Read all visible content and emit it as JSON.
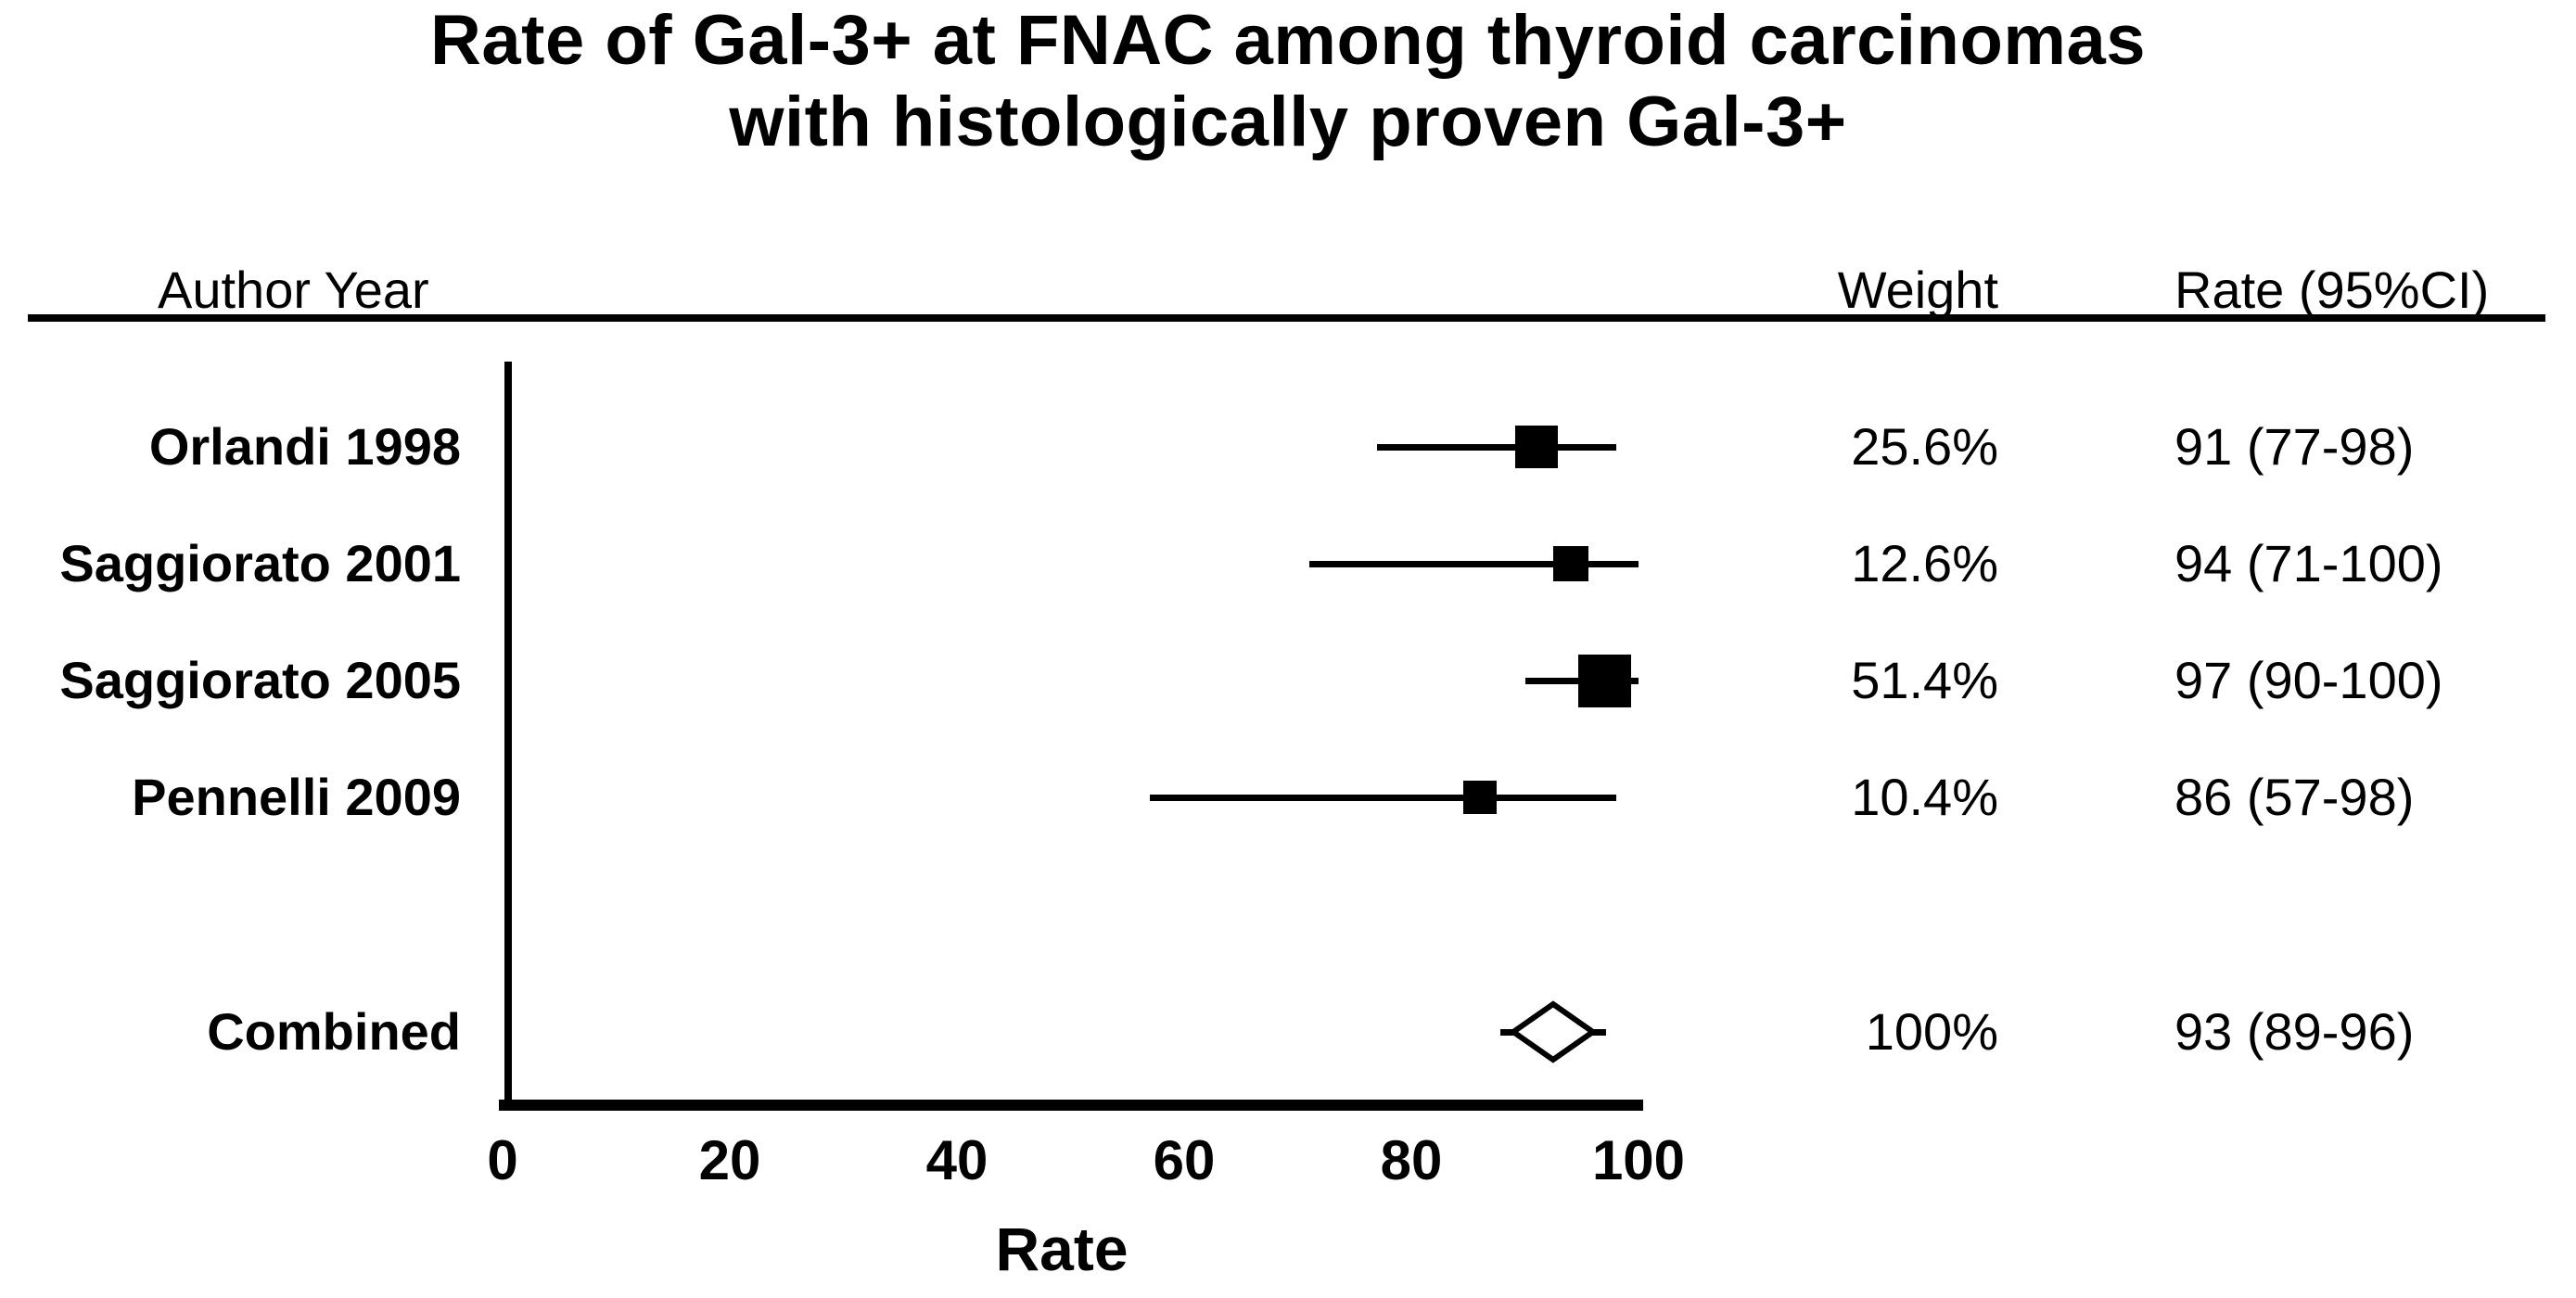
{
  "title": {
    "line1": "Rate of Gal-3+ at FNAC among thyroid carcinomas",
    "line2": "with histologically proven Gal-3+"
  },
  "columns": {
    "author_year": "Author Year",
    "weight": "Weight",
    "rate_ci": "Rate (95%CI)"
  },
  "colors": {
    "foreground": "#000000",
    "background": "#ffffff"
  },
  "chart_data": {
    "type": "forest",
    "title": "Rate of Gal-3+ at FNAC among thyroid carcinomas with histologically proven Gal-3+",
    "xlabel": "Rate",
    "xlim": [
      0,
      100
    ],
    "x_ticks": [
      "0",
      "20",
      "40",
      "60",
      "80",
      "100"
    ],
    "x_tick_values": [
      0,
      20,
      40,
      60,
      80,
      100
    ],
    "grid": false,
    "studies": [
      {
        "label": "Orlandi 1998",
        "weight_pct": 25.6,
        "weight_text": "25.6%",
        "rate": 91,
        "ci": [
          77,
          98
        ],
        "rate_text": "91 (77-98)"
      },
      {
        "label": "Saggiorato 2001",
        "weight_pct": 12.6,
        "weight_text": "12.6%",
        "rate": 94,
        "ci": [
          71,
          100
        ],
        "rate_text": "94 (71-100)"
      },
      {
        "label": "Saggiorato 2005",
        "weight_pct": 51.4,
        "weight_text": "51.4%",
        "rate": 97,
        "ci": [
          90,
          100
        ],
        "rate_text": "97 (90-100)"
      },
      {
        "label": "Pennelli 2009",
        "weight_pct": 10.4,
        "weight_text": "10.4%",
        "rate": 86,
        "ci": [
          57,
          98
        ],
        "rate_text": "86 (57-98)"
      }
    ],
    "combined": {
      "label": "Combined",
      "weight_pct": 100,
      "weight_text": "100%",
      "rate": 93,
      "ci": [
        89,
        96
      ],
      "rate_text": "93 (89-96)"
    }
  }
}
